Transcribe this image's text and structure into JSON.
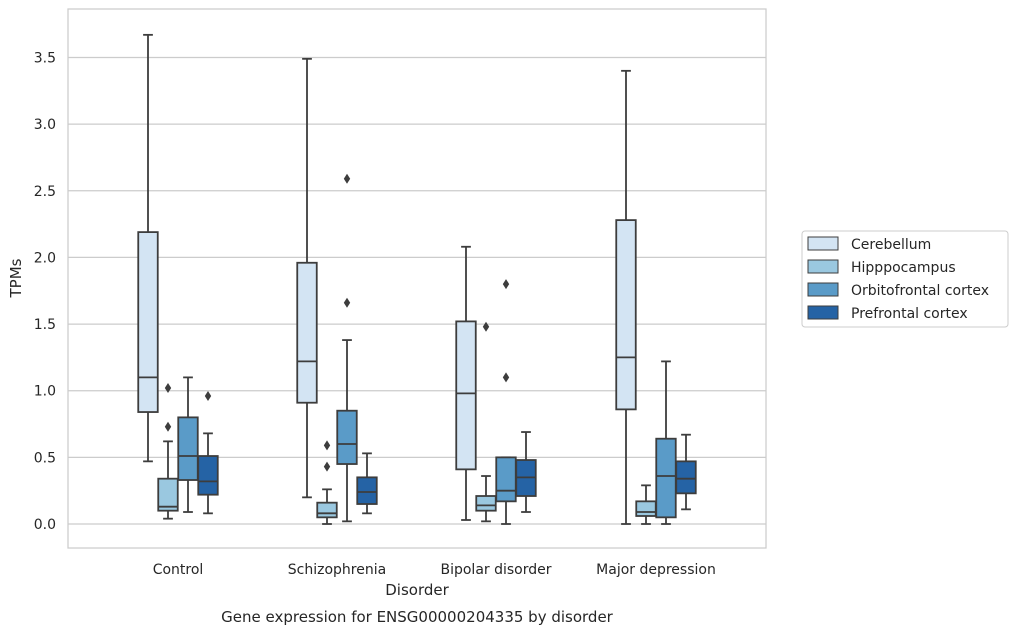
{
  "chart_data": {
    "type": "box",
    "title": "",
    "caption": "Gene expression for ENSG00000204335 by disorder",
    "xlabel": "Disorder",
    "ylabel": "TPMs",
    "categories": [
      "Control",
      "Schizophrenia",
      "Bipolar disorder",
      "Major depression"
    ],
    "ylim": [
      -0.18,
      3.87
    ],
    "yticks": [
      0.0,
      0.5,
      1.0,
      1.5,
      2.0,
      2.5,
      3.0,
      3.5
    ],
    "ytick_labels": [
      "0.0",
      "0.5",
      "1.0",
      "1.5",
      "2.0",
      "2.5",
      "3.0",
      "3.5"
    ],
    "grid": "y",
    "legend_placement": "right",
    "series": [
      {
        "name": "Cerebellum",
        "color": "#d3e4f3",
        "boxes": [
          {
            "whislo": 0.47,
            "q1": 0.84,
            "med": 1.1,
            "q3": 2.19,
            "whishi": 3.67,
            "fliers": []
          },
          {
            "whislo": 0.2,
            "q1": 0.91,
            "med": 1.22,
            "q3": 1.96,
            "whishi": 3.49,
            "fliers": []
          },
          {
            "whislo": 0.03,
            "q1": 0.41,
            "med": 0.98,
            "q3": 1.52,
            "whishi": 2.08,
            "fliers": []
          },
          {
            "whislo": 0.0,
            "q1": 0.86,
            "med": 1.25,
            "q3": 2.28,
            "whishi": 3.4,
            "fliers": []
          }
        ]
      },
      {
        "name": "Hipppocampus",
        "color": "#9ac8e0",
        "boxes": [
          {
            "whislo": 0.04,
            "q1": 0.1,
            "med": 0.13,
            "q3": 0.34,
            "whishi": 0.62,
            "fliers": [
              0.73,
              1.02
            ]
          },
          {
            "whislo": 0.0,
            "q1": 0.05,
            "med": 0.08,
            "q3": 0.16,
            "whishi": 0.26,
            "fliers": [
              0.43,
              0.59
            ]
          },
          {
            "whislo": 0.02,
            "q1": 0.1,
            "med": 0.14,
            "q3": 0.21,
            "whishi": 0.36,
            "fliers": [
              1.48
            ]
          },
          {
            "whislo": 0.0,
            "q1": 0.06,
            "med": 0.09,
            "q3": 0.17,
            "whishi": 0.29,
            "fliers": []
          }
        ]
      },
      {
        "name": "Orbitofrontal cortex",
        "color": "#5a9bc8",
        "boxes": [
          {
            "whislo": 0.09,
            "q1": 0.33,
            "med": 0.51,
            "q3": 0.8,
            "whishi": 1.1,
            "fliers": []
          },
          {
            "whislo": 0.02,
            "q1": 0.45,
            "med": 0.6,
            "q3": 0.85,
            "whishi": 1.38,
            "fliers": [
              1.66,
              2.59
            ]
          },
          {
            "whislo": 0.0,
            "q1": 0.17,
            "med": 0.25,
            "q3": 0.5,
            "whishi": 0.5,
            "fliers": [
              1.1,
              1.8
            ]
          },
          {
            "whislo": 0.0,
            "q1": 0.05,
            "med": 0.36,
            "q3": 0.64,
            "whishi": 1.22,
            "fliers": []
          }
        ]
      },
      {
        "name": "Prefrontal cortex",
        "color": "#2563a5",
        "boxes": [
          {
            "whislo": 0.08,
            "q1": 0.22,
            "med": 0.32,
            "q3": 0.51,
            "whishi": 0.68,
            "fliers": [
              0.96
            ]
          },
          {
            "whislo": 0.08,
            "q1": 0.15,
            "med": 0.24,
            "q3": 0.35,
            "whishi": 0.53,
            "fliers": []
          },
          {
            "whislo": 0.09,
            "q1": 0.21,
            "med": 0.35,
            "q3": 0.48,
            "whishi": 0.69,
            "fliers": []
          },
          {
            "whislo": 0.11,
            "q1": 0.23,
            "med": 0.34,
            "q3": 0.47,
            "whishi": 0.67,
            "fliers": []
          }
        ]
      }
    ]
  }
}
